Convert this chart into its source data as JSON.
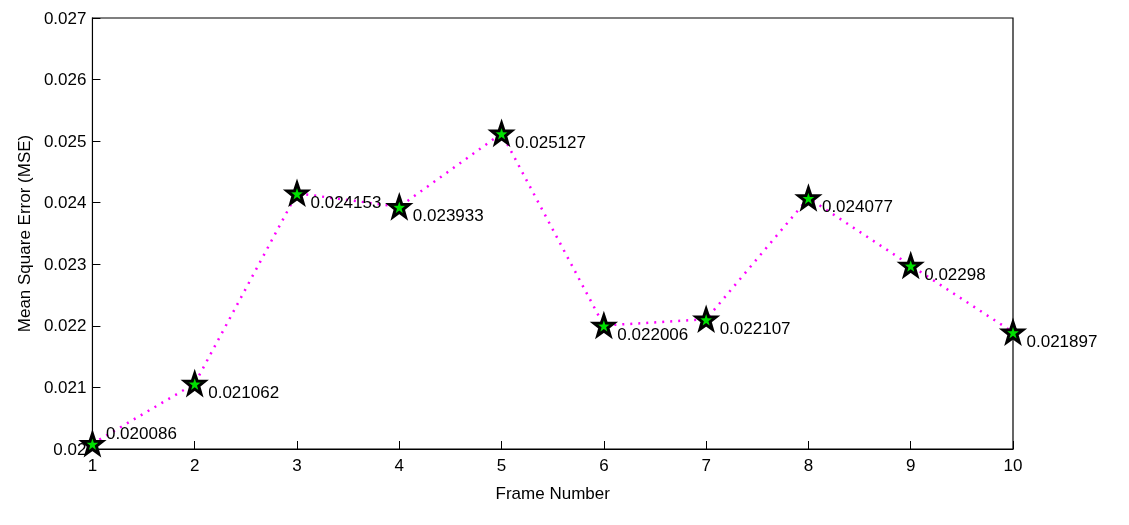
{
  "chart_data": {
    "type": "line",
    "xlabel": "Frame Number",
    "ylabel": "Mean Square Error (MSE)",
    "x": [
      1,
      2,
      3,
      4,
      5,
      6,
      7,
      8,
      9,
      10
    ],
    "series": [
      {
        "color": "#ff00ff",
        "values": [
          0.020086,
          0.021062,
          0.024153,
          0.023933,
          0.025127,
          0.022006,
          0.022107,
          0.024077,
          0.02298,
          0.021897
        ]
      }
    ],
    "xlim": [
      1,
      10
    ],
    "xticks": [
      1,
      2,
      3,
      4,
      5,
      6,
      7,
      8,
      9,
      10
    ],
    "ylim": [
      0.02,
      0.027
    ],
    "yticks": [
      0.02,
      0.021,
      0.022,
      0.023,
      0.024,
      0.025,
      0.026,
      0.027
    ],
    "grid": false,
    "marker": "star",
    "line_style": "dotted",
    "data_labels": true
  }
}
